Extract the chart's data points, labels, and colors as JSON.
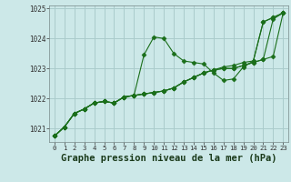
{
  "background_color": "#cce8e8",
  "grid_color": "#aacccc",
  "line_color": "#1a6e1a",
  "marker": "D",
  "marker_size": 2.5,
  "xlabel": "Graphe pression niveau de la mer (hPa)",
  "xlabel_fontsize": 7.5,
  "xticks": [
    0,
    1,
    2,
    3,
    4,
    5,
    6,
    7,
    8,
    9,
    10,
    11,
    12,
    13,
    14,
    15,
    16,
    17,
    18,
    19,
    20,
    21,
    22,
    23
  ],
  "yticks": [
    1021,
    1022,
    1023,
    1024,
    1025
  ],
  "ylim": [
    1020.55,
    1025.1
  ],
  "xlim": [
    -0.5,
    23.5
  ],
  "series": [
    [
      1020.75,
      1021.05,
      1021.5,
      1021.65,
      1021.85,
      1021.9,
      1021.85,
      1022.05,
      1022.1,
      1023.45,
      1024.05,
      1024.0,
      1023.5,
      1023.25,
      1023.2,
      1023.15,
      1022.85,
      1022.6,
      1022.65,
      1023.05,
      1023.25,
      1024.55,
      1024.7,
      1024.85
    ],
    [
      1020.75,
      1021.05,
      1021.5,
      1021.65,
      1021.85,
      1021.9,
      1021.85,
      1022.05,
      1022.1,
      1022.15,
      1022.2,
      1022.25,
      1022.35,
      1022.55,
      1022.7,
      1022.85,
      1022.95,
      1023.05,
      1023.1,
      1023.2,
      1023.25,
      1024.55,
      1024.7,
      1024.85
    ],
    [
      1020.75,
      1021.05,
      1021.5,
      1021.65,
      1021.85,
      1021.9,
      1021.85,
      1022.05,
      1022.1,
      1022.15,
      1022.2,
      1022.25,
      1022.35,
      1022.55,
      1022.7,
      1022.85,
      1022.95,
      1023.0,
      1023.0,
      1023.1,
      1023.2,
      1023.3,
      1024.65,
      1024.85
    ],
    [
      1020.75,
      1021.05,
      1021.5,
      1021.65,
      1021.85,
      1021.9,
      1021.85,
      1022.05,
      1022.1,
      1022.15,
      1022.2,
      1022.25,
      1022.35,
      1022.55,
      1022.7,
      1022.85,
      1022.95,
      1023.0,
      1023.0,
      1023.1,
      1023.2,
      1023.3,
      1023.4,
      1024.85
    ]
  ]
}
